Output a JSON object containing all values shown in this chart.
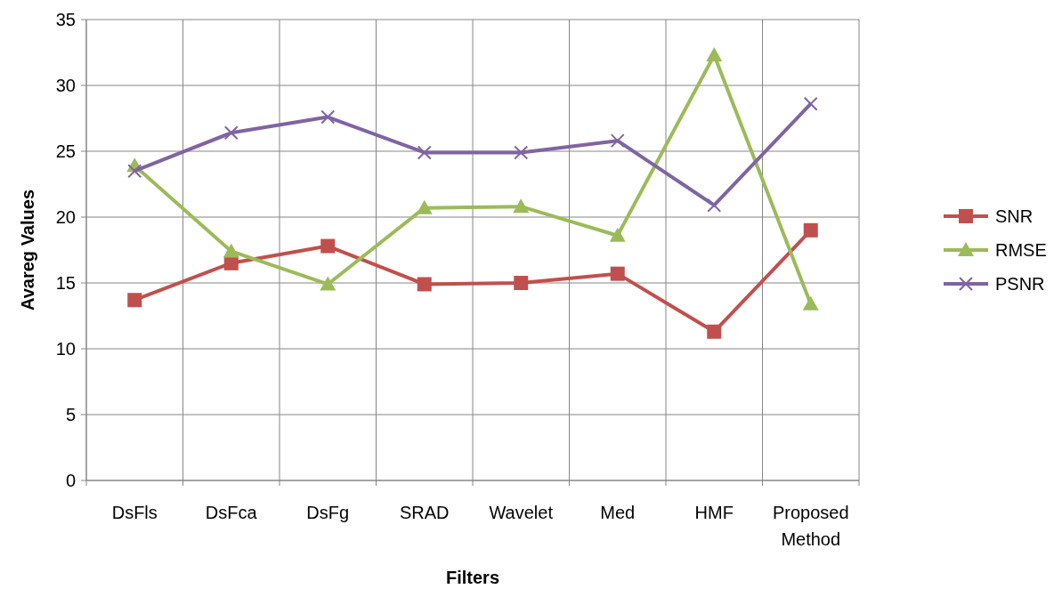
{
  "chart_data": {
    "type": "line",
    "xlabel": "Filters",
    "ylabel": "Avareg Values",
    "categories": [
      "DsFls",
      "DsFca",
      "DsFg",
      "SRAD",
      "Wavelet",
      "Med",
      "HMF",
      "Proposed Method"
    ],
    "series": [
      {
        "name": "SNR",
        "color": "#c0504d",
        "marker": "square",
        "values": [
          13.7,
          16.5,
          17.8,
          14.9,
          15.0,
          15.7,
          11.3,
          19.0
        ]
      },
      {
        "name": "RMSE",
        "color": "#9bbb59",
        "marker": "triangle",
        "values": [
          23.9,
          17.4,
          14.9,
          20.7,
          20.8,
          18.6,
          32.3,
          13.4
        ]
      },
      {
        "name": "PSNR",
        "color": "#8064a2",
        "marker": "cross",
        "values": [
          23.5,
          26.4,
          27.6,
          24.9,
          24.9,
          25.8,
          20.9,
          28.6
        ]
      }
    ],
    "ylim": [
      0,
      35
    ],
    "yticks": [
      0,
      5,
      10,
      15,
      20,
      25,
      30,
      35
    ],
    "grid": true,
    "legend": "right",
    "line_style": "solid"
  }
}
